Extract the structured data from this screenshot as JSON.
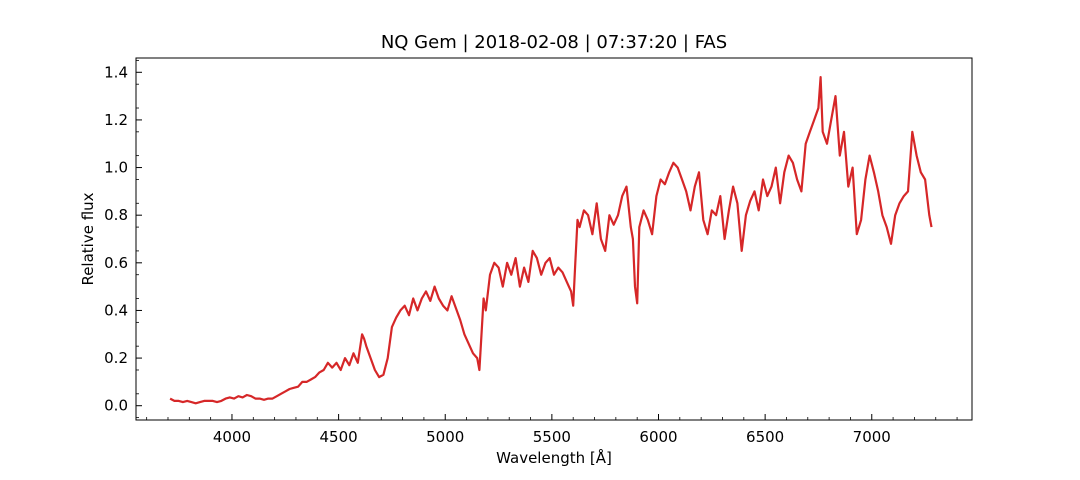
{
  "chart_data": {
    "type": "line",
    "title": "NQ Gem | 2018-02-08 | 07:37:20 | FAS",
    "xlabel": "Wavelength [Å]",
    "ylabel": "Relative flux",
    "xlim": [
      3550,
      7470
    ],
    "ylim": [
      -0.06,
      1.46
    ],
    "x_ticks": [
      4000,
      4500,
      5000,
      5500,
      6000,
      6500,
      7000
    ],
    "x_tick_labels": [
      "4000",
      "4500",
      "5000",
      "5500",
      "6000",
      "6500",
      "7000"
    ],
    "y_ticks": [
      0.0,
      0.2,
      0.4,
      0.6,
      0.8,
      1.0,
      1.2,
      1.4
    ],
    "y_tick_labels": [
      "0.0",
      "0.2",
      "0.4",
      "0.6",
      "0.8",
      "1.0",
      "1.2",
      "1.4"
    ],
    "grid": false,
    "legend": "none",
    "series": [
      {
        "color": "#d62728",
        "x": [
          3710,
          3730,
          3750,
          3770,
          3790,
          3810,
          3830,
          3850,
          3870,
          3890,
          3910,
          3930,
          3950,
          3970,
          3990,
          4010,
          4030,
          4050,
          4070,
          4090,
          4110,
          4130,
          4150,
          4170,
          4190,
          4210,
          4230,
          4250,
          4270,
          4290,
          4310,
          4330,
          4350,
          4370,
          4390,
          4410,
          4430,
          4450,
          4470,
          4490,
          4510,
          4530,
          4550,
          4570,
          4590,
          4610,
          4620,
          4630,
          4650,
          4670,
          4690,
          4710,
          4730,
          4750,
          4770,
          4790,
          4810,
          4830,
          4850,
          4870,
          4890,
          4910,
          4930,
          4950,
          4970,
          4990,
          5010,
          5030,
          5050,
          5070,
          5090,
          5110,
          5130,
          5150,
          5160,
          5170,
          5180,
          5190,
          5210,
          5230,
          5250,
          5270,
          5290,
          5310,
          5330,
          5350,
          5370,
          5390,
          5410,
          5430,
          5450,
          5470,
          5490,
          5510,
          5530,
          5550,
          5570,
          5590,
          5600,
          5610,
          5620,
          5630,
          5650,
          5670,
          5690,
          5710,
          5730,
          5750,
          5770,
          5790,
          5810,
          5830,
          5850,
          5870,
          5880,
          5890,
          5900,
          5910,
          5930,
          5950,
          5970,
          5990,
          6010,
          6030,
          6050,
          6070,
          6090,
          6110,
          6130,
          6150,
          6170,
          6190,
          6210,
          6230,
          6250,
          6270,
          6290,
          6310,
          6330,
          6350,
          6370,
          6390,
          6410,
          6430,
          6450,
          6470,
          6490,
          6510,
          6530,
          6550,
          6570,
          6590,
          6610,
          6630,
          6650,
          6670,
          6690,
          6710,
          6730,
          6750,
          6760,
          6770,
          6790,
          6810,
          6830,
          6850,
          6870,
          6890,
          6910,
          6930,
          6950,
          6970,
          6990,
          7010,
          7030,
          7050,
          7070,
          7090,
          7110,
          7130,
          7150,
          7170,
          7190,
          7210,
          7230,
          7250,
          7270,
          7280
        ],
        "y": [
          0.03,
          0.02,
          0.02,
          0.015,
          0.02,
          0.015,
          0.01,
          0.015,
          0.02,
          0.02,
          0.02,
          0.015,
          0.02,
          0.03,
          0.035,
          0.03,
          0.04,
          0.035,
          0.045,
          0.04,
          0.03,
          0.03,
          0.025,
          0.03,
          0.03,
          0.04,
          0.05,
          0.06,
          0.07,
          0.075,
          0.08,
          0.1,
          0.1,
          0.11,
          0.12,
          0.14,
          0.15,
          0.18,
          0.16,
          0.18,
          0.15,
          0.2,
          0.17,
          0.22,
          0.18,
          0.3,
          0.28,
          0.25,
          0.2,
          0.15,
          0.12,
          0.13,
          0.2,
          0.33,
          0.37,
          0.4,
          0.42,
          0.38,
          0.45,
          0.4,
          0.45,
          0.48,
          0.44,
          0.5,
          0.45,
          0.42,
          0.4,
          0.46,
          0.41,
          0.36,
          0.3,
          0.26,
          0.22,
          0.2,
          0.15,
          0.3,
          0.45,
          0.4,
          0.55,
          0.6,
          0.58,
          0.5,
          0.6,
          0.55,
          0.62,
          0.5,
          0.58,
          0.52,
          0.65,
          0.62,
          0.55,
          0.6,
          0.62,
          0.55,
          0.58,
          0.56,
          0.52,
          0.48,
          0.42,
          0.6,
          0.78,
          0.75,
          0.82,
          0.8,
          0.72,
          0.85,
          0.7,
          0.65,
          0.8,
          0.76,
          0.8,
          0.88,
          0.92,
          0.75,
          0.7,
          0.5,
          0.43,
          0.75,
          0.82,
          0.78,
          0.72,
          0.88,
          0.95,
          0.93,
          0.98,
          1.02,
          1.0,
          0.95,
          0.9,
          0.82,
          0.92,
          0.98,
          0.78,
          0.72,
          0.82,
          0.8,
          0.88,
          0.7,
          0.82,
          0.92,
          0.85,
          0.65,
          0.8,
          0.86,
          0.9,
          0.82,
          0.95,
          0.88,
          0.92,
          1.0,
          0.85,
          0.98,
          1.05,
          1.02,
          0.95,
          0.9,
          1.1,
          1.15,
          1.2,
          1.25,
          1.38,
          1.15,
          1.1,
          1.2,
          1.3,
          1.05,
          1.15,
          0.92,
          1.0,
          0.72,
          0.78,
          0.95,
          1.05,
          0.98,
          0.9,
          0.8,
          0.75,
          0.68,
          0.8,
          0.85,
          0.88,
          0.9,
          1.15,
          1.05,
          0.98,
          0.95,
          0.8,
          0.75
        ]
      }
    ]
  }
}
